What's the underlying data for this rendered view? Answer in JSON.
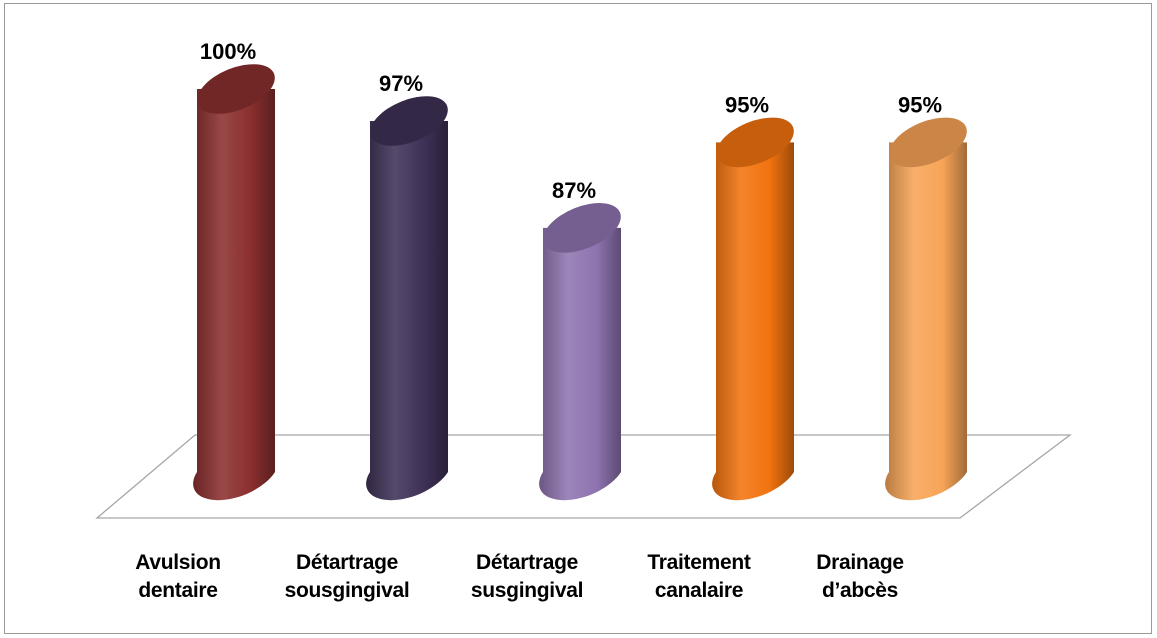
{
  "chart_data": {
    "type": "bar",
    "style": "3d-cylinder",
    "categories": [
      "Avulsion dentaire",
      "Détartrage sousgingival",
      "Détartrage susgingival",
      "Traitement canalaire",
      "Drainage d’abcès"
    ],
    "category_lines": [
      [
        "Avulsion",
        "dentaire"
      ],
      [
        "Détartrage",
        "sousgingival"
      ],
      [
        "Détartrage",
        "susgingival"
      ],
      [
        "Traitement",
        "canalaire"
      ],
      [
        "Drainage",
        "d’abcès"
      ]
    ],
    "values": [
      100,
      97,
      87,
      95,
      95
    ],
    "value_labels": [
      "100%",
      "97%",
      "87%",
      "95%",
      "95%"
    ],
    "colors": [
      "#8B2F2F",
      "#3F3157",
      "#8E74B0",
      "#F2730F",
      "#F7A457"
    ],
    "title": "",
    "xlabel": "",
    "ylabel": "",
    "ylim": [
      75,
      100
    ],
    "grid": false,
    "legend": "none"
  }
}
